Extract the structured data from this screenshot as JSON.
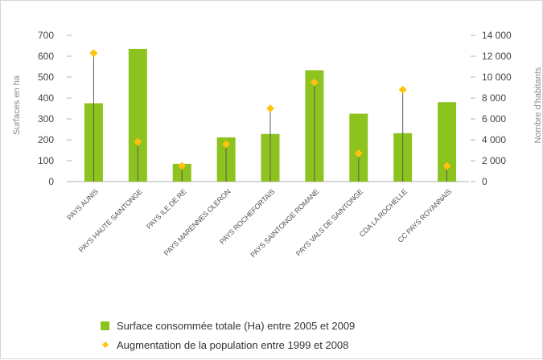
{
  "chart_data": {
    "type": "bar",
    "categories": [
      "PAYS AUNIS",
      "PAYS HAUTE SAINTONGE",
      "PAYS ILE DE RE",
      "PAYS MARENNES OLERON",
      "PAYS ROCHEFORTAIS",
      "PAYS SAINTONGE ROMANE",
      "PAYS VALS DE SAINTONGE",
      "CDA LA ROCHELLE",
      "CC PAYS ROYANNAIS"
    ],
    "series": [
      {
        "name": "Surface consommée totale (Ha) entre 2005 et 2009",
        "type": "bar",
        "axis": "left",
        "color": "#8dc31f",
        "values": [
          375,
          635,
          85,
          212,
          228,
          533,
          325,
          232,
          380
        ]
      },
      {
        "name": "Augmentation de la population entre 1999 et 2008",
        "type": "scatter",
        "axis": "right",
        "color": "#ffc20e",
        "values": [
          12300,
          3800,
          1500,
          3600,
          7000,
          9500,
          2700,
          8800,
          1500
        ]
      }
    ],
    "y_left": {
      "label": "Surfaces en ha",
      "lim": [
        0,
        700
      ],
      "ticks": [
        "0",
        "100",
        "200",
        "300",
        "400",
        "500",
        "600",
        "700"
      ]
    },
    "y_right": {
      "label": "Nombre d'habitants",
      "lim": [
        0,
        14000
      ],
      "ticks": [
        "0",
        "2 000",
        "4 000",
        "6 000",
        "8 000",
        "10 000",
        "12 000",
        "14 000"
      ]
    },
    "legend_position": "bottom",
    "grid": false
  }
}
